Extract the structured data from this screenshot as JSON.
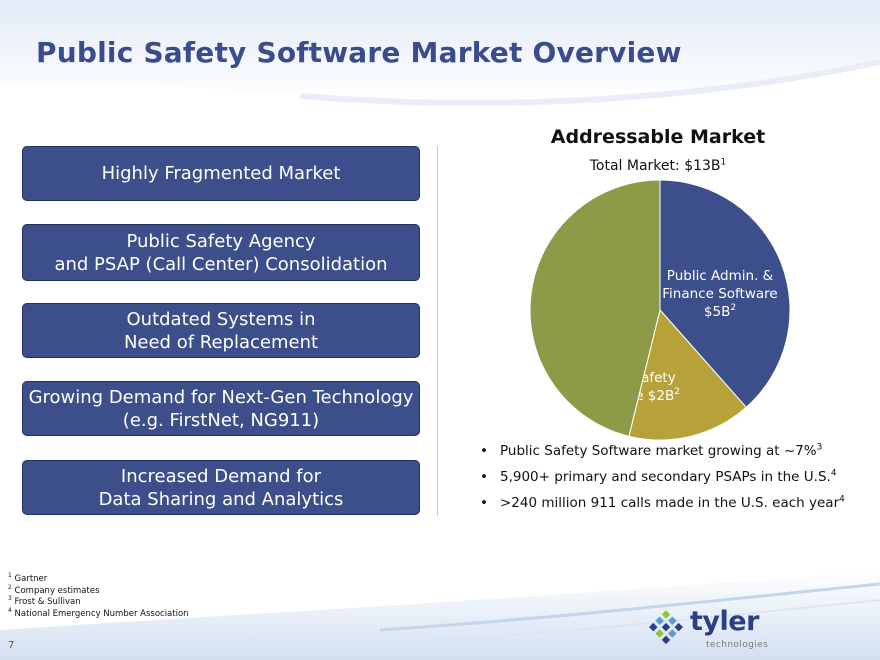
{
  "slide": {
    "title": "Public Safety Software Market Overview",
    "page_number": "7"
  },
  "boxes": [
    {
      "lines": [
        "Highly Fragmented Market"
      ]
    },
    {
      "lines": [
        "Public Safety Agency",
        "and PSAP (Call Center) Consolidation"
      ]
    },
    {
      "lines": [
        "Outdated Systems in",
        "Need of Replacement"
      ]
    },
    {
      "lines": [
        "Growing Demand for Next-Gen Technology",
        "(e.g. FirstNet, NG911)"
      ]
    },
    {
      "lines": [
        "Increased Demand for",
        "Data Sharing and Analytics"
      ]
    }
  ],
  "chart": {
    "title": "Addressable Market",
    "subtitle_text": "Total Market: $13B",
    "subtitle_sup": "1"
  },
  "chart_data": {
    "type": "pie",
    "title": "Addressable Market",
    "subtitle": "Total Market: $13B",
    "slices": [
      {
        "label_lines": [
          "Public Admin. &",
          "Finance Software"
        ],
        "value_label": "$5B",
        "sup": "2",
        "value": 5,
        "color": "#3d4f8b"
      },
      {
        "label_lines": [
          "Public Safety"
        ],
        "value_label": "Software $2B",
        "sup": "2",
        "value": 2,
        "color": "#b7a23a"
      },
      {
        "label_lines": [],
        "value_label": "",
        "sup": "",
        "value": 6,
        "color": "#8d9a48"
      }
    ]
  },
  "bullets": [
    {
      "text": "Public Safety Software market growing at ~7%",
      "sup": "3"
    },
    {
      "text": "5,900+ primary and secondary PSAPs in the U.S.",
      "sup": "4"
    },
    {
      "text": ">240 million 911 calls made in the U.S. each year",
      "sup": "4"
    }
  ],
  "footnotes": [
    {
      "num": "1",
      "text": "Gartner"
    },
    {
      "num": "2",
      "text": "Company estimates"
    },
    {
      "num": "3",
      "text": "Frost & Sullivan"
    },
    {
      "num": "4",
      "text": "National Emergency Number Association"
    }
  ],
  "logo": {
    "word": "tyler",
    "sub": "technologies",
    "colors": {
      "blue": "#2b3f86",
      "green": "#8dc63f",
      "teal": "#5b9bd5"
    }
  }
}
